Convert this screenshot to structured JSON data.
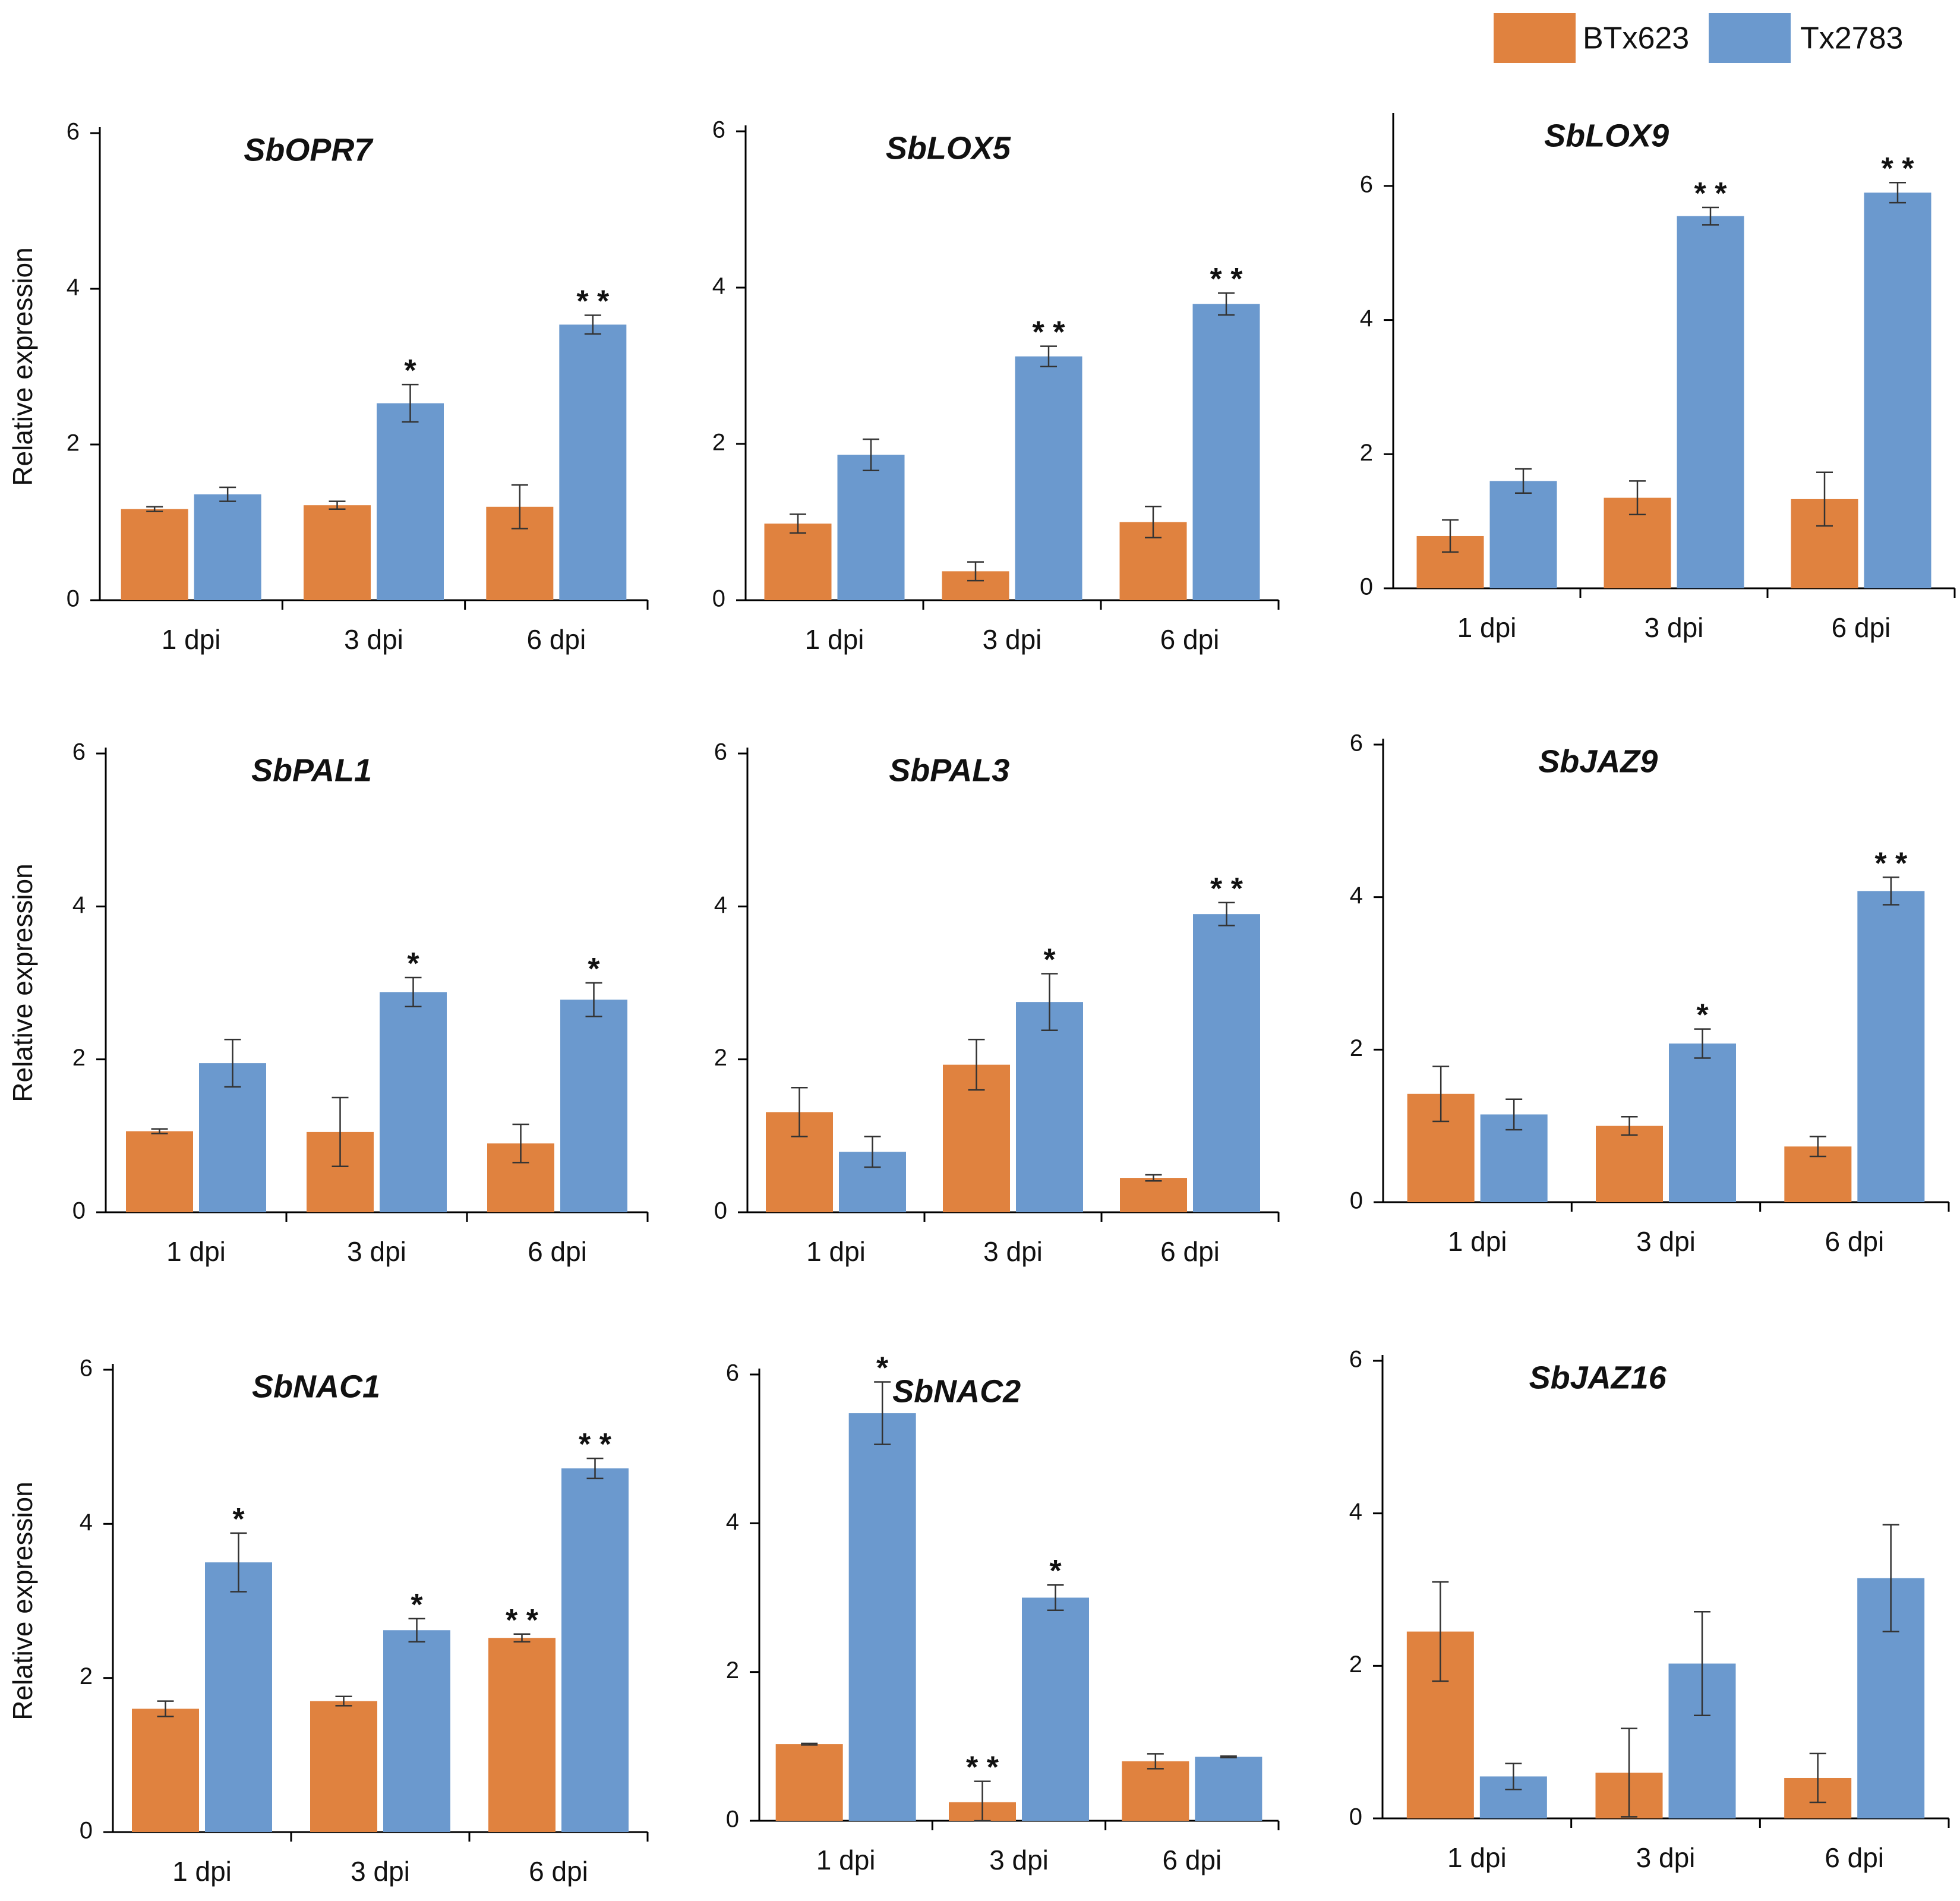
{
  "figure": {
    "ylabel": "Relative expression"
  },
  "legend": [
    {
      "name": "BTx623",
      "color": "#e0823f"
    },
    {
      "name": "Tx2783",
      "color": "#6b99ce"
    }
  ],
  "chart_data": [
    {
      "type": "bar",
      "title": "SbOPR7",
      "categories": [
        "1 dpi",
        "3 dpi",
        "6 dpi"
      ],
      "ylabel": "Relative expression",
      "ylim": [
        0,
        6
      ],
      "yticks": [
        0,
        2,
        4,
        6
      ],
      "series": [
        {
          "name": "BTx623",
          "values": [
            1.17,
            1.22,
            1.2
          ],
          "errors": [
            0.03,
            0.05,
            0.28
          ],
          "sig": [
            "",
            "",
            ""
          ]
        },
        {
          "name": "Tx2783",
          "values": [
            1.36,
            2.53,
            3.54
          ],
          "errors": [
            0.09,
            0.24,
            0.12
          ],
          "sig": [
            "",
            "*",
            "**"
          ]
        }
      ]
    },
    {
      "type": "bar",
      "title": "SbLOX5",
      "categories": [
        "1 dpi",
        "3 dpi",
        "6 dpi"
      ],
      "ylabel": "",
      "ylim": [
        0,
        6
      ],
      "yticks": [
        0,
        2,
        4,
        6
      ],
      "series": [
        {
          "name": "BTx623",
          "values": [
            0.98,
            0.37,
            1.0
          ],
          "errors": [
            0.12,
            0.12,
            0.2
          ],
          "sig": [
            "",
            "",
            ""
          ]
        },
        {
          "name": "Tx2783",
          "values": [
            1.86,
            3.12,
            3.79
          ],
          "errors": [
            0.2,
            0.13,
            0.14
          ],
          "sig": [
            "",
            "**",
            "**"
          ]
        }
      ]
    },
    {
      "type": "bar",
      "title": "SbLOX9",
      "categories": [
        "1 dpi",
        "3 dpi",
        "6 dpi"
      ],
      "ylabel": "",
      "ylim": [
        0,
        7
      ],
      "yticks": [
        0,
        2,
        4,
        6
      ],
      "series": [
        {
          "name": "BTx623",
          "values": [
            0.78,
            1.35,
            1.33
          ],
          "errors": [
            0.24,
            0.25,
            0.4
          ],
          "sig": [
            "",
            "",
            ""
          ]
        },
        {
          "name": "Tx2783",
          "values": [
            1.6,
            5.55,
            5.9
          ],
          "errors": [
            0.18,
            0.13,
            0.15
          ],
          "sig": [
            "",
            "**",
            "**"
          ]
        }
      ]
    },
    {
      "type": "bar",
      "title": "SbPAL1",
      "categories": [
        "1 dpi",
        "3 dpi",
        "6 dpi"
      ],
      "ylabel": "Relative expression",
      "ylim": [
        0,
        6
      ],
      "yticks": [
        0,
        2,
        4,
        6
      ],
      "series": [
        {
          "name": "BTx623",
          "values": [
            1.06,
            1.05,
            0.9
          ],
          "errors": [
            0.03,
            0.45,
            0.25
          ],
          "sig": [
            "",
            "",
            ""
          ]
        },
        {
          "name": "Tx2783",
          "values": [
            1.95,
            2.88,
            2.78
          ],
          "errors": [
            0.31,
            0.19,
            0.22
          ],
          "sig": [
            "",
            "*",
            "*"
          ]
        }
      ]
    },
    {
      "type": "bar",
      "title": "SbPAL3",
      "categories": [
        "1 dpi",
        "3 dpi",
        "6 dpi"
      ],
      "ylabel": "",
      "ylim": [
        0,
        6
      ],
      "yticks": [
        0,
        2,
        4,
        6
      ],
      "series": [
        {
          "name": "BTx623",
          "values": [
            1.31,
            1.93,
            0.45
          ],
          "errors": [
            0.32,
            0.33,
            0.04
          ],
          "sig": [
            "",
            "",
            ""
          ]
        },
        {
          "name": "Tx2783",
          "values": [
            0.79,
            2.75,
            3.9
          ],
          "errors": [
            0.2,
            0.37,
            0.15
          ],
          "sig": [
            "",
            "*",
            "**"
          ]
        }
      ]
    },
    {
      "type": "bar",
      "title": "SbJAZ9",
      "categories": [
        "1 dpi",
        "3 dpi",
        "6 dpi"
      ],
      "ylabel": "",
      "ylim": [
        0,
        6
      ],
      "yticks": [
        0,
        2,
        4,
        6
      ],
      "series": [
        {
          "name": "BTx623",
          "values": [
            1.42,
            1.0,
            0.73
          ],
          "errors": [
            0.36,
            0.12,
            0.13
          ],
          "sig": [
            "",
            "",
            ""
          ]
        },
        {
          "name": "Tx2783",
          "values": [
            1.15,
            2.08,
            4.08
          ],
          "errors": [
            0.2,
            0.19,
            0.18
          ],
          "sig": [
            "",
            "*",
            "**"
          ]
        }
      ]
    },
    {
      "type": "bar",
      "title": "SbNAC1",
      "categories": [
        "1 dpi",
        "3 dpi",
        "6 dpi"
      ],
      "ylabel": "Relative expression",
      "ylim": [
        0,
        6
      ],
      "yticks": [
        0,
        2,
        4,
        6
      ],
      "series": [
        {
          "name": "BTx623",
          "values": [
            1.6,
            1.7,
            2.52
          ],
          "errors": [
            0.1,
            0.06,
            0.05
          ],
          "sig": [
            "",
            "",
            "**"
          ]
        },
        {
          "name": "Tx2783",
          "values": [
            3.5,
            2.62,
            4.72
          ],
          "errors": [
            0.38,
            0.15,
            0.13
          ],
          "sig": [
            "*",
            "*",
            "**"
          ]
        }
      ]
    },
    {
      "type": "bar",
      "title": "SbNAC2",
      "categories": [
        "1 dpi",
        "3 dpi",
        "6 dpi"
      ],
      "ylabel": "",
      "ylim": [
        0,
        6
      ],
      "yticks": [
        0,
        2,
        4,
        6
      ],
      "series": [
        {
          "name": "BTx623",
          "values": [
            1.03,
            0.25,
            0.8
          ],
          "errors": [
            0.01,
            0.28,
            0.1
          ],
          "sig": [
            "",
            "**",
            ""
          ]
        },
        {
          "name": "Tx2783",
          "values": [
            5.48,
            3.0,
            0.86
          ],
          "errors": [
            0.42,
            0.17,
            0.01
          ],
          "sig": [
            "*",
            "*",
            ""
          ]
        }
      ]
    },
    {
      "type": "bar",
      "title": "SbJAZ16",
      "categories": [
        "1 dpi",
        "3 dpi",
        "6 dpi"
      ],
      "ylabel": "",
      "ylim": [
        0,
        6
      ],
      "yticks": [
        0,
        2,
        4,
        6
      ],
      "series": [
        {
          "name": "BTx623",
          "values": [
            2.45,
            0.6,
            0.53
          ],
          "errors": [
            0.65,
            0.58,
            0.32
          ],
          "sig": [
            "",
            "",
            ""
          ]
        },
        {
          "name": "Tx2783",
          "values": [
            0.55,
            2.03,
            3.15
          ],
          "errors": [
            0.17,
            0.68,
            0.7
          ],
          "sig": [
            "",
            "",
            ""
          ]
        }
      ]
    }
  ]
}
